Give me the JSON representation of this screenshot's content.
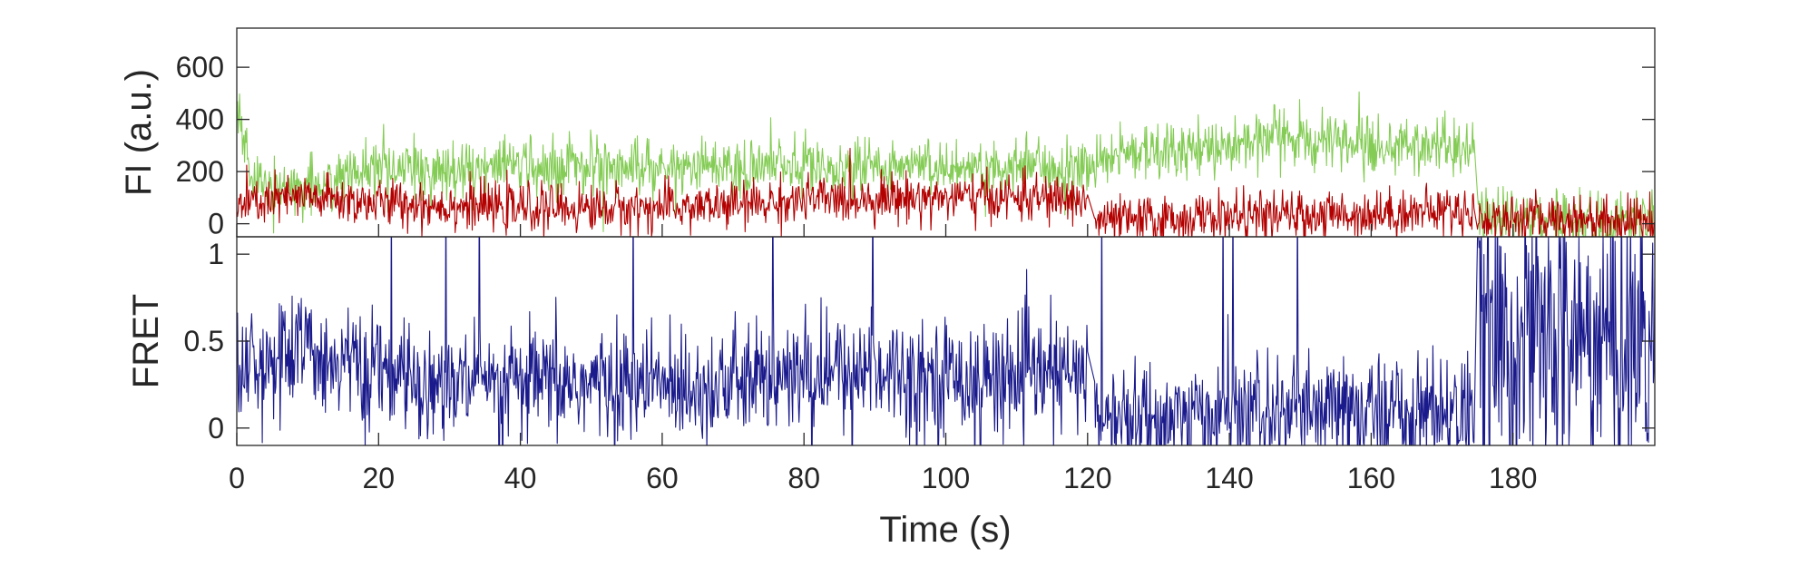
{
  "chart_data": [
    {
      "type": "line",
      "panel": "top",
      "title": "",
      "xlabel": "",
      "ylabel": "FI (a.u.)",
      "xlim": [
        0,
        200
      ],
      "ylim": [
        -50,
        750
      ],
      "yticks": [
        0,
        200,
        400,
        600
      ],
      "ytick_labels": [
        "0",
        "200",
        "400",
        "600"
      ],
      "series": [
        {
          "color": "#84cc55",
          "segments": [
            {
              "x": [
                0,
                1,
                2,
                4,
                6,
                10,
                15,
                20,
                30,
                40,
                50,
                60,
                70,
                80,
                90,
                100,
                110,
                120,
                122,
                130,
                140,
                145,
                150,
                160,
                170,
                174.5
              ],
              "y": [
                420,
                300,
                200,
                150,
                140,
                140,
                190,
                200,
                210,
                220,
                230,
                220,
                210,
                220,
                220,
                220,
                220,
                210,
                260,
                280,
                300,
                330,
                330,
                300,
                290,
                280
              ]
            },
            {
              "x": [
                175,
                180,
                190,
                200
              ],
              "y": [
                20,
                20,
                10,
                10
              ]
            }
          ],
          "noise": 55
        },
        {
          "color": "#b30000",
          "segments": [
            {
              "x": [
                0,
                5,
                10,
                20,
                30,
                40,
                50,
                60,
                70,
                80,
                90,
                100,
                110,
                120
              ],
              "y": [
                70,
                90,
                100,
                80,
                70,
                60,
                60,
                60,
                70,
                90,
                100,
                100,
                100,
                90
              ]
            },
            {
              "x": [
                121,
                130,
                140,
                150,
                160,
                170,
                174.5
              ],
              "y": [
                10,
                15,
                30,
                30,
                40,
                50,
                50
              ]
            },
            {
              "x": [
                175,
                180,
                190,
                200
              ],
              "y": [
                15,
                20,
                20,
                15
              ]
            }
          ],
          "noise": 45
        }
      ]
    },
    {
      "type": "line",
      "panel": "bottom",
      "title": "",
      "xlabel": "Time (s)",
      "ylabel": "FRET",
      "xlim": [
        0,
        200
      ],
      "ylim": [
        -0.1,
        1.1
      ],
      "xticks": [
        0,
        20,
        40,
        60,
        80,
        100,
        120,
        140,
        160,
        180
      ],
      "xtick_labels": [
        "0",
        "20",
        "40",
        "60",
        "80",
        "100",
        "120",
        "140",
        "160",
        "180"
      ],
      "yticks": [
        0,
        0.5,
        1
      ],
      "ytick_labels": [
        "0",
        "0.5",
        "1"
      ],
      "series": [
        {
          "color": "#1a1a8c",
          "segments": [
            {
              "x": [
                0,
                5,
                10,
                20,
                30,
                40,
                50,
                60,
                70,
                80,
                90,
                100,
                110,
                120
              ],
              "y": [
                0.35,
                0.4,
                0.45,
                0.3,
                0.25,
                0.25,
                0.25,
                0.25,
                0.25,
                0.3,
                0.35,
                0.3,
                0.3,
                0.3
              ]
            },
            {
              "x": [
                121,
                130,
                140,
                150,
                160,
                170,
                174.5
              ],
              "y": [
                0.05,
                0.05,
                0.08,
                0.08,
                0.1,
                0.1,
                0.1
              ]
            },
            {
              "x": [
                175,
                180,
                190,
                200
              ],
              "y": [
                0.5,
                0.5,
                0.5,
                0.5
              ]
            }
          ],
          "noise": 0.16,
          "wild_segment_index": 2
        }
      ]
    }
  ]
}
